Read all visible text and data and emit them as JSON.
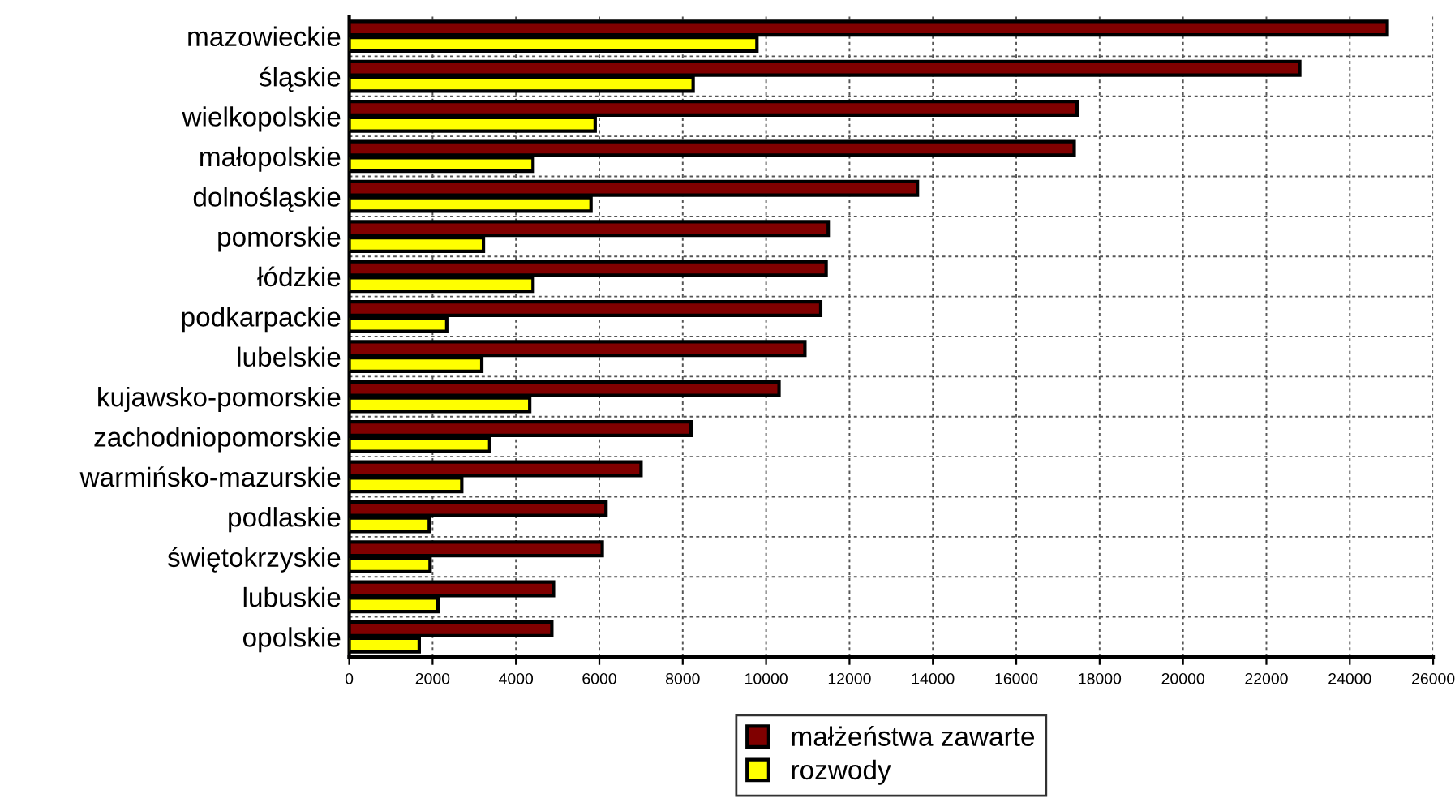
{
  "chart_data": {
    "type": "bar",
    "orientation": "horizontal",
    "categories": [
      "mazowieckie",
      "śląskie",
      "wielkopolskie",
      "małopolskie",
      "dolnośląskie",
      "pomorskie",
      "łódzkie",
      "podkarpackie",
      "lubelskie",
      "kujawsko-pomorskie",
      "zachodniopomorskie",
      "warmińsko-mazurskie",
      "podlaskie",
      "świętokrzyskie",
      "lubuskie",
      "opolskie"
    ],
    "series": [
      {
        "name": "małżeństwa zawarte",
        "color": "#800000",
        "values": [
          24900,
          22800,
          17460,
          17390,
          13630,
          11490,
          11440,
          11310,
          10930,
          10310,
          8200,
          7000,
          6160,
          6070,
          4900,
          4860
        ]
      },
      {
        "name": "rozwody",
        "color": "#ffff00",
        "values": [
          9780,
          8250,
          5900,
          4410,
          5800,
          3220,
          4410,
          2340,
          3180,
          4330,
          3370,
          2700,
          1920,
          1940,
          2130,
          1680
        ]
      }
    ],
    "xlim": [
      0,
      26000
    ],
    "xticks": [
      0,
      2000,
      4000,
      6000,
      8000,
      10000,
      12000,
      14000,
      16000,
      18000,
      20000,
      22000,
      24000,
      26000
    ],
    "grid": true,
    "legend": "bottom"
  }
}
